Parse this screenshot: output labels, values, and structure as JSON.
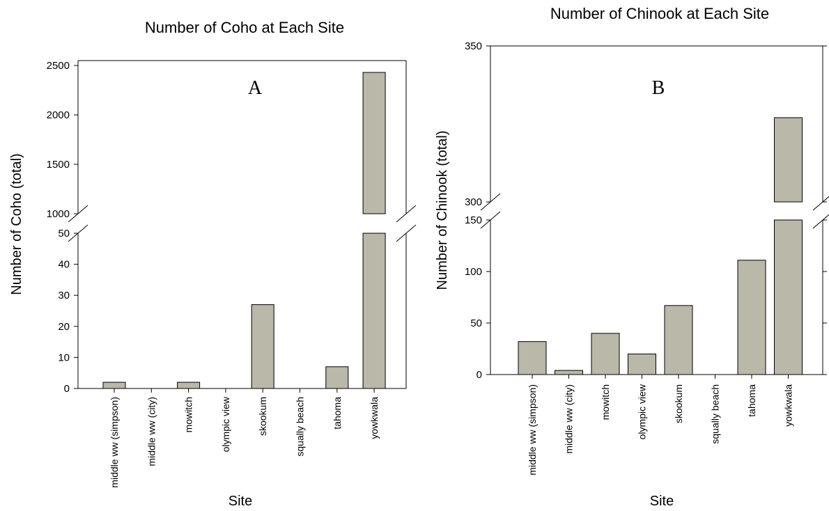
{
  "colors": {
    "bar_fill": "#B9B8A9",
    "axis": "#000000",
    "background": "#ffffff"
  },
  "chart_data": [
    {
      "type": "bar",
      "panel": "A",
      "title": "Number of Coho at Each Site",
      "xlabel": "Site",
      "ylabel": "Number of Coho (total)",
      "categories": [
        "middle ww (simpson)",
        "middle ww (city)",
        "mowitch",
        "olympic view",
        "skookum",
        "squally beach",
        "tahoma",
        "yowkwala"
      ],
      "values": [
        2,
        0,
        2,
        0,
        27,
        0,
        7,
        2430
      ],
      "y_axis_break": true,
      "lower_ylim": [
        0,
        50
      ],
      "upper_ylim": [
        1000,
        2550
      ],
      "lower_ticks": [
        0,
        10,
        20,
        30,
        40,
        50
      ],
      "upper_ticks": [
        1000,
        1500,
        2000,
        2500
      ],
      "grid": false
    },
    {
      "type": "bar",
      "panel": "B",
      "title": "Number of Chinook at Each Site",
      "xlabel": "Site",
      "ylabel": "Number of Chinook (total)",
      "categories": [
        "middle ww (simpson)",
        "middle ww (city)",
        "mowitch",
        "olympic view",
        "skookum",
        "squally beach",
        "tahoma",
        "yowkwala"
      ],
      "values": [
        32,
        4,
        40,
        20,
        67,
        0,
        111,
        327
      ],
      "y_axis_break": true,
      "lower_ylim": [
        0,
        150
      ],
      "upper_ylim": [
        300,
        350
      ],
      "lower_ticks": [
        0,
        50,
        100,
        150
      ],
      "upper_ticks": [
        300,
        350
      ],
      "grid": false
    }
  ]
}
